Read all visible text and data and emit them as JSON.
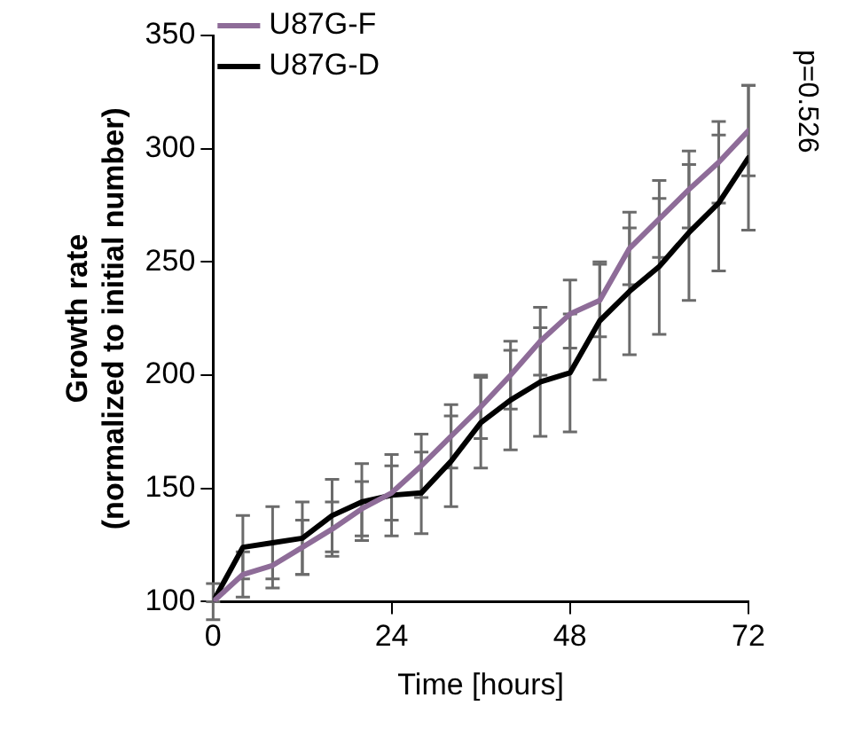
{
  "chart_data": {
    "type": "line",
    "xlabel": "Time [hours]",
    "ylabel": "Growth rate\n(normalized to initial number)",
    "x": [
      0,
      4,
      8,
      12,
      16,
      20,
      24,
      28,
      32,
      36,
      40,
      44,
      48,
      52,
      56,
      60,
      64,
      68,
      72
    ],
    "series": [
      {
        "name": "U87G-F",
        "color": "#8e6c98",
        "values": [
          100,
          112,
          116,
          124,
          132,
          141,
          148,
          160,
          173,
          186,
          200,
          215,
          227,
          233,
          256,
          269,
          282,
          294,
          308
        ],
        "errors": [
          8,
          10,
          10,
          12,
          12,
          12,
          12,
          14,
          14,
          14,
          15,
          15,
          15,
          16,
          16,
          17,
          17,
          18,
          20
        ]
      },
      {
        "name": "U87G-D",
        "color": "#000000",
        "values": [
          100,
          124,
          126,
          128,
          138,
          144,
          147,
          148,
          162,
          179,
          189,
          197,
          201,
          224,
          237,
          248,
          263,
          276,
          296
        ],
        "errors": [
          0,
          14,
          16,
          16,
          16,
          17,
          18,
          18,
          20,
          20,
          22,
          24,
          26,
          26,
          28,
          30,
          30,
          30,
          32
        ]
      }
    ],
    "xlim": [
      0,
      72
    ],
    "xticks": [
      0,
      24,
      48,
      72
    ],
    "ylim": [
      100,
      350
    ],
    "yticks": [
      100,
      150,
      200,
      250,
      300,
      350
    ],
    "grid": false,
    "legend": "top left",
    "marker": "none",
    "line_style": "solid",
    "annotations": [
      "p=0.526"
    ]
  }
}
